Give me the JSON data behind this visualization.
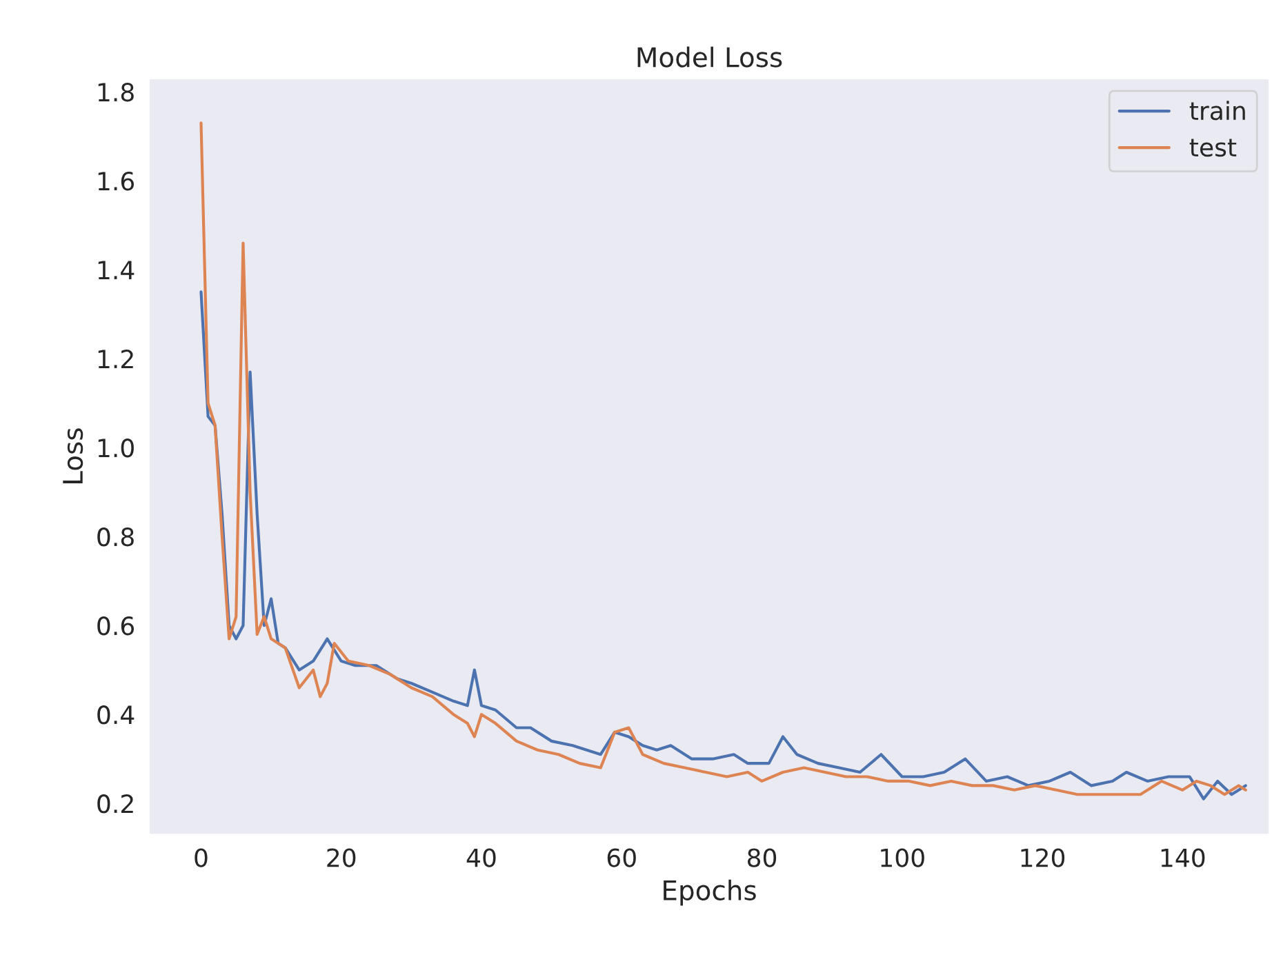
{
  "chart_data": {
    "type": "line",
    "title": "Model Loss",
    "xlabel": "Epochs",
    "ylabel": "Loss",
    "xlim": [
      -7.45,
      152.4
    ],
    "ylim": [
      0.13,
      1.83
    ],
    "xticks": [
      0,
      20,
      40,
      60,
      80,
      100,
      120,
      140
    ],
    "yticks": [
      0.2,
      0.4,
      0.6,
      0.8,
      {
        "value": 1,
        "label": "1.0"
      },
      1.2,
      1.4,
      1.6,
      1.8
    ],
    "grid": false,
    "legend": "top right",
    "marker": "none",
    "line_style": "solid",
    "series": [
      {
        "name": "train",
        "color": "#4c72b0",
        "x": [
          0,
          1,
          2,
          3,
          4,
          5,
          6,
          7,
          8,
          9,
          10,
          11,
          12,
          14,
          16,
          18,
          20,
          22,
          25,
          28,
          30,
          33,
          36,
          38,
          39,
          40,
          42,
          45,
          47,
          50,
          53,
          55,
          57,
          59,
          61,
          63,
          65,
          67,
          70,
          73,
          76,
          78,
          81,
          83,
          85,
          88,
          91,
          94,
          97,
          100,
          103,
          106,
          109,
          112,
          115,
          118,
          121,
          124,
          127,
          130,
          132,
          135,
          138,
          141,
          143,
          145,
          147,
          149
        ],
        "values": [
          1.35,
          1.07,
          1.05,
          0.85,
          0.6,
          0.57,
          0.6,
          1.17,
          0.85,
          0.6,
          0.66,
          0.56,
          0.55,
          0.5,
          0.52,
          0.57,
          0.52,
          0.51,
          0.51,
          0.48,
          0.47,
          0.45,
          0.43,
          0.42,
          0.5,
          0.42,
          0.41,
          0.37,
          0.37,
          0.34,
          0.33,
          0.32,
          0.31,
          0.36,
          0.35,
          0.33,
          0.32,
          0.33,
          0.3,
          0.3,
          0.31,
          0.29,
          0.29,
          0.35,
          0.31,
          0.29,
          0.28,
          0.27,
          0.31,
          0.26,
          0.26,
          0.27,
          0.3,
          0.25,
          0.26,
          0.24,
          0.25,
          0.27,
          0.24,
          0.25,
          0.27,
          0.25,
          0.26,
          0.26,
          0.21,
          0.25,
          0.22,
          0.24
        ]
      },
      {
        "name": "test",
        "color": "#dd8452",
        "x": [
          0,
          1,
          2,
          3,
          4,
          5,
          6,
          7,
          8,
          9,
          10,
          12,
          14,
          16,
          17,
          18,
          19,
          21,
          24,
          27,
          30,
          33,
          36,
          38,
          39,
          40,
          42,
          45,
          48,
          51,
          54,
          57,
          59,
          61,
          63,
          66,
          69,
          72,
          75,
          78,
          80,
          83,
          86,
          89,
          92,
          95,
          98,
          101,
          104,
          107,
          110,
          113,
          116,
          119,
          122,
          125,
          128,
          131,
          134,
          137,
          140,
          142,
          144,
          146,
          148,
          149
        ],
        "values": [
          1.73,
          1.1,
          1.05,
          0.8,
          0.57,
          0.62,
          1.46,
          0.9,
          0.58,
          0.62,
          0.57,
          0.55,
          0.46,
          0.5,
          0.44,
          0.47,
          0.56,
          0.52,
          0.51,
          0.49,
          0.46,
          0.44,
          0.4,
          0.38,
          0.35,
          0.4,
          0.38,
          0.34,
          0.32,
          0.31,
          0.29,
          0.28,
          0.36,
          0.37,
          0.31,
          0.29,
          0.28,
          0.27,
          0.26,
          0.27,
          0.25,
          0.27,
          0.28,
          0.27,
          0.26,
          0.26,
          0.25,
          0.25,
          0.24,
          0.25,
          0.24,
          0.24,
          0.23,
          0.24,
          0.23,
          0.22,
          0.22,
          0.22,
          0.22,
          0.25,
          0.23,
          0.25,
          0.24,
          0.22,
          0.24,
          0.23
        ]
      }
    ]
  }
}
